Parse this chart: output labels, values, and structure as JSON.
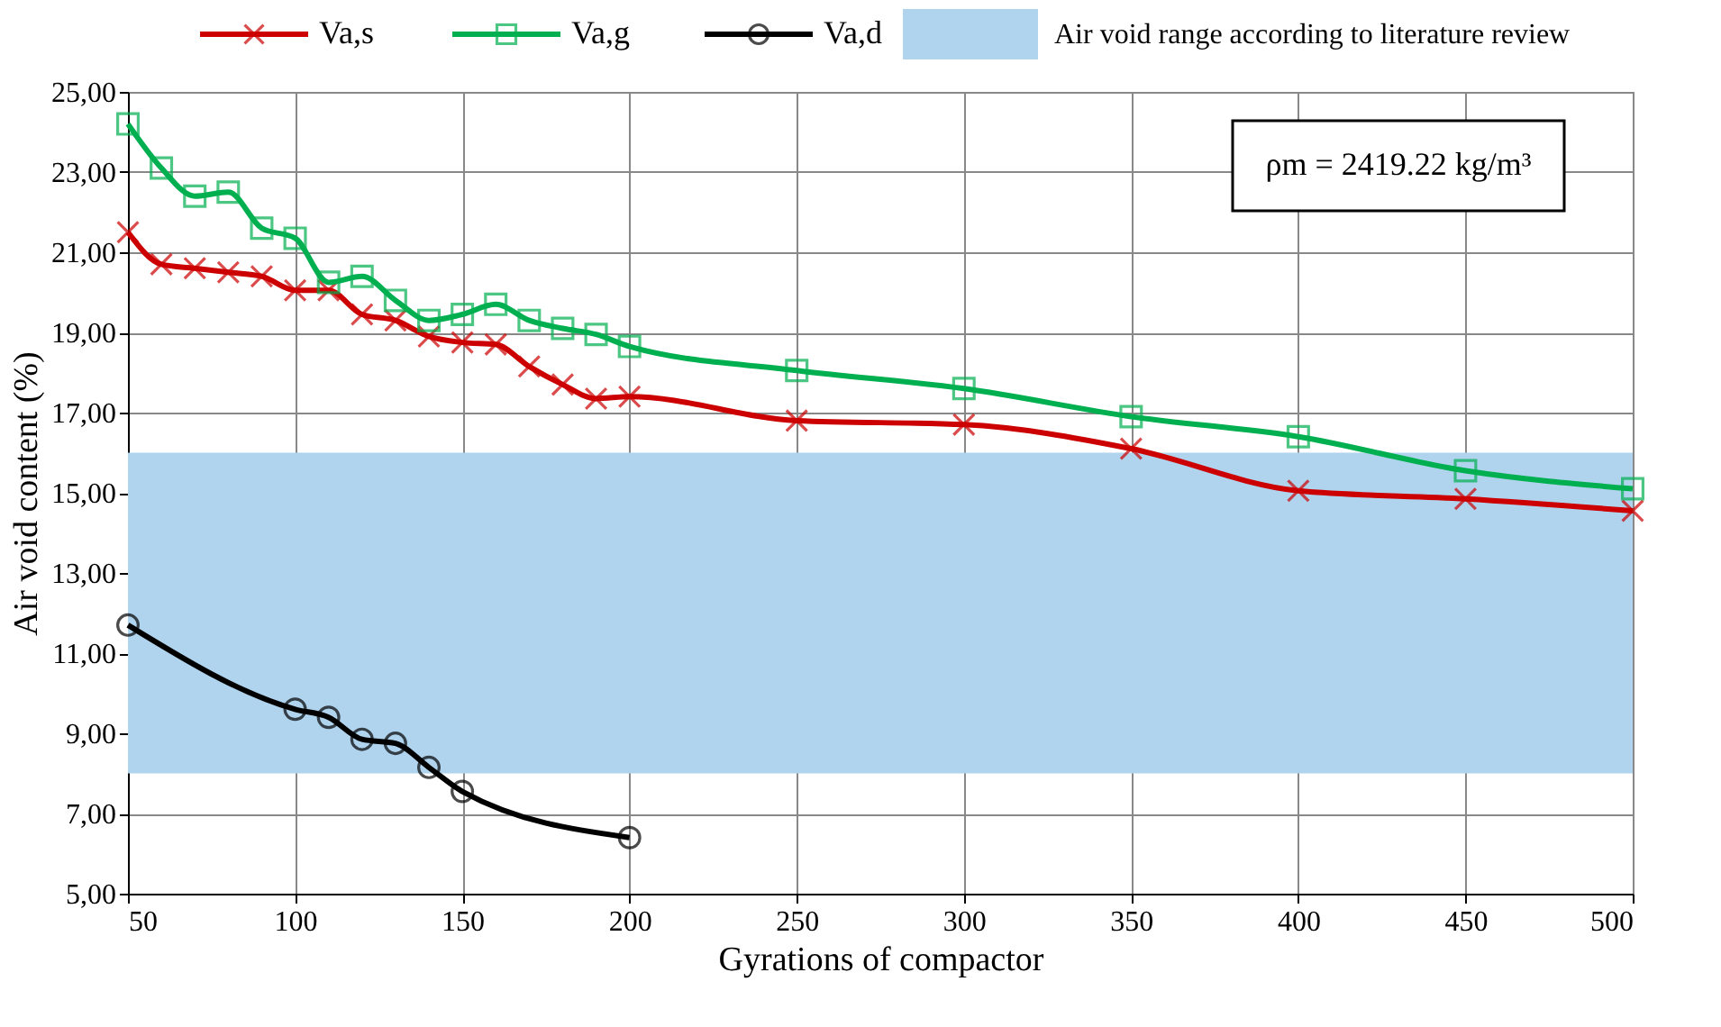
{
  "chart_data": {
    "type": "line",
    "xlabel": "Gyrations of compactor",
    "ylabel": "Air void content (%)",
    "series": [
      {
        "name": "Va,s",
        "color": "#cc0000",
        "marker": "cross",
        "x": [
          50,
          60,
          70,
          80,
          90,
          100,
          110,
          120,
          130,
          140,
          150,
          160,
          170,
          180,
          190,
          200,
          250,
          300,
          350,
          400,
          450,
          500
        ],
        "values": [
          21.5,
          20.7,
          20.6,
          20.5,
          20.4,
          20.05,
          20.05,
          19.45,
          19.3,
          18.9,
          18.75,
          18.7,
          18.15,
          17.7,
          17.35,
          17.4,
          16.8,
          16.7,
          16.1,
          15.05,
          14.85,
          14.55
        ]
      },
      {
        "name": "Va,g",
        "color": "#00b050",
        "marker": "square",
        "x": [
          50,
          60,
          70,
          80,
          90,
          100,
          110,
          120,
          130,
          140,
          150,
          160,
          170,
          180,
          190,
          200,
          250,
          300,
          350,
          400,
          450,
          500
        ],
        "values": [
          24.2,
          23.1,
          22.4,
          22.5,
          21.6,
          21.35,
          20.25,
          20.4,
          19.8,
          19.3,
          19.45,
          19.7,
          19.3,
          19.1,
          18.95,
          18.65,
          18.05,
          17.6,
          16.9,
          16.4,
          15.55,
          15.1
        ]
      },
      {
        "name": "Va,d",
        "color": "#000000",
        "marker": "circle",
        "x": [
          50,
          100,
          110,
          120,
          130,
          140,
          150,
          200
        ],
        "values": [
          11.7,
          9.6,
          9.4,
          8.85,
          8.75,
          8.15,
          7.55,
          6.4
        ]
      }
    ],
    "bands": [
      {
        "axis": "y",
        "from": 8,
        "to": 16,
        "label": "Air void range according to literature review",
        "color": "#b0d3ee"
      }
    ],
    "annotations": [
      "ρm = 2419.22 kg/m³"
    ],
    "xlim": [
      50,
      500
    ],
    "xticks": [
      50,
      100,
      150,
      200,
      250,
      300,
      350,
      400,
      450,
      500
    ],
    "ylim": [
      5,
      25
    ],
    "yticks": [
      {
        "value": 5,
        "label": "5,00"
      },
      {
        "value": 7,
        "label": "7,00"
      },
      {
        "value": 9,
        "label": "9,00"
      },
      {
        "value": 11,
        "label": "11,00"
      },
      {
        "value": 13,
        "label": "13,00"
      },
      {
        "value": 15,
        "label": "15,00"
      },
      {
        "value": 17,
        "label": "17,00"
      },
      {
        "value": 19,
        "label": "19,00"
      },
      {
        "value": 21,
        "label": "21,00"
      },
      {
        "value": 23,
        "label": "23,00"
      },
      {
        "value": 25,
        "label": "25,00"
      }
    ],
    "grid": true,
    "legend": "top",
    "line_style": "solid"
  }
}
